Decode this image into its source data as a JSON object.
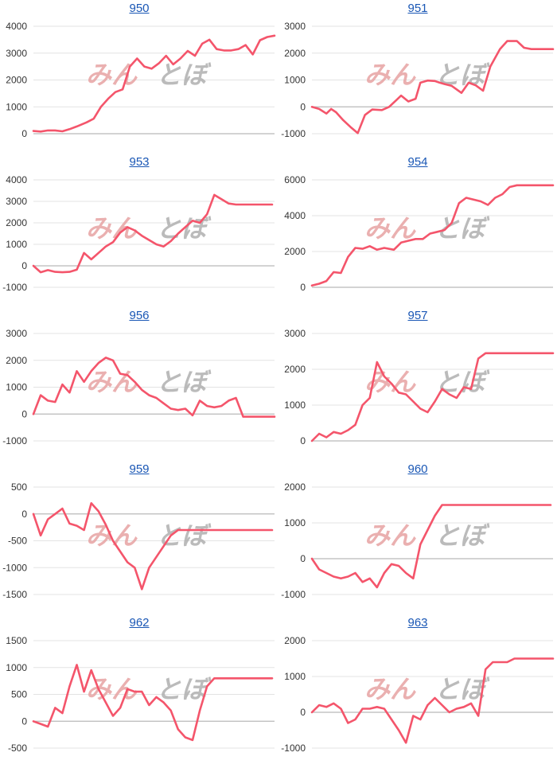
{
  "colors": {
    "line": "#f4556b",
    "grid": "#e3e3e3",
    "axis": "#b9b9b9",
    "watermark_pink": "#e7a3a3",
    "watermark_gray": "#b0b0b0",
    "title_link": "#1a57b5"
  },
  "watermark": {
    "part1": "みん",
    "part2": "とぼ"
  },
  "chart_data": [
    {
      "type": "line",
      "title": "950",
      "yticks": [
        0,
        1000,
        2000,
        3000,
        4000
      ],
      "ylim": [
        0,
        4000
      ],
      "xlim": [
        0,
        100
      ],
      "x": [
        0,
        3,
        6,
        9,
        12,
        15,
        18,
        22,
        25,
        28,
        31,
        34,
        37,
        40,
        43,
        46,
        49,
        52,
        55,
        58,
        61,
        64,
        67,
        70,
        73,
        76,
        79,
        82,
        85,
        88,
        91,
        94,
        97,
        100
      ],
      "y": [
        100,
        80,
        120,
        120,
        90,
        170,
        270,
        420,
        560,
        1000,
        1300,
        1550,
        1650,
        2500,
        2800,
        2500,
        2420,
        2620,
        2900,
        2580,
        2800,
        3080,
        2900,
        3350,
        3500,
        3150,
        3100,
        3100,
        3150,
        3300,
        2950,
        3480,
        3600,
        3650
      ]
    },
    {
      "type": "line",
      "title": "951",
      "yticks": [
        -1000,
        0,
        1000,
        2000,
        3000
      ],
      "ylim": [
        -1000,
        3000
      ],
      "xlim": [
        0,
        100
      ],
      "x": [
        0,
        3,
        6,
        8,
        10,
        13,
        16,
        19,
        22,
        25,
        29,
        32,
        35,
        37,
        40,
        43,
        45,
        48,
        51,
        53,
        55,
        58,
        62,
        65,
        68,
        71,
        74,
        78,
        81,
        85,
        88,
        91,
        94,
        97,
        100
      ],
      "y": [
        0,
        -80,
        -250,
        -80,
        -200,
        -500,
        -750,
        -980,
        -300,
        -100,
        -120,
        0,
        250,
        420,
        200,
        300,
        900,
        980,
        960,
        900,
        850,
        780,
        520,
        900,
        800,
        600,
        1500,
        2150,
        2450,
        2450,
        2200,
        2150,
        2150,
        2150,
        2150
      ]
    },
    {
      "type": "line",
      "title": "953",
      "yticks": [
        -1000,
        0,
        1000,
        2000,
        3000,
        4000
      ],
      "ylim": [
        -1000,
        4000
      ],
      "xlim": [
        0,
        100
      ],
      "x": [
        0,
        3,
        6,
        9,
        12,
        15,
        18,
        21,
        24,
        27,
        30,
        33,
        36,
        39,
        42,
        45,
        48,
        51,
        54,
        57,
        60,
        63,
        66,
        69,
        72,
        75,
        78,
        81,
        84,
        87,
        90,
        93,
        96,
        99
      ],
      "y": [
        0,
        -300,
        -200,
        -280,
        -300,
        -280,
        -180,
        600,
        300,
        600,
        900,
        1100,
        1550,
        1800,
        1650,
        1400,
        1200,
        1000,
        900,
        1150,
        1500,
        1800,
        2100,
        2000,
        2400,
        3300,
        3100,
        2900,
        2850,
        2850,
        2850,
        2850,
        2850,
        2850
      ]
    },
    {
      "type": "line",
      "title": "954",
      "yticks": [
        0,
        2000,
        4000,
        6000
      ],
      "ylim": [
        0,
        6000
      ],
      "xlim": [
        0,
        100
      ],
      "x": [
        0,
        3,
        6,
        9,
        12,
        15,
        18,
        21,
        24,
        27,
        30,
        34,
        37,
        40,
        43,
        46,
        49,
        52,
        55,
        58,
        61,
        64,
        67,
        70,
        73,
        76,
        79,
        82,
        85,
        88,
        91,
        94,
        97,
        100
      ],
      "y": [
        100,
        200,
        350,
        850,
        800,
        1700,
        2200,
        2150,
        2300,
        2100,
        2200,
        2100,
        2500,
        2600,
        2700,
        2700,
        3000,
        3100,
        3200,
        3600,
        4700,
        5000,
        4900,
        4800,
        4600,
        5000,
        5200,
        5600,
        5700,
        5700,
        5700,
        5700,
        5700,
        5700
      ]
    },
    {
      "type": "line",
      "title": "956",
      "yticks": [
        -1000,
        0,
        1000,
        2000,
        3000
      ],
      "ylim": [
        -1000,
        3000
      ],
      "xlim": [
        0,
        100
      ],
      "x": [
        0,
        3,
        6,
        9,
        12,
        15,
        18,
        21,
        24,
        27,
        30,
        33,
        36,
        39,
        42,
        45,
        48,
        51,
        54,
        57,
        60,
        63,
        66,
        69,
        72,
        75,
        78,
        81,
        84,
        87,
        90,
        93,
        96,
        100
      ],
      "y": [
        0,
        700,
        500,
        450,
        1100,
        800,
        1600,
        1200,
        1600,
        1900,
        2100,
        2000,
        1500,
        1450,
        1200,
        900,
        700,
        600,
        400,
        200,
        150,
        200,
        -50,
        500,
        300,
        250,
        300,
        500,
        600,
        -100,
        -100,
        -100,
        -100,
        -100
      ]
    },
    {
      "type": "line",
      "title": "957",
      "yticks": [
        0,
        1000,
        2000,
        3000
      ],
      "ylim": [
        0,
        3000
      ],
      "xlim": [
        0,
        100
      ],
      "x": [
        0,
        3,
        6,
        9,
        12,
        15,
        18,
        21,
        24,
        27,
        30,
        33,
        36,
        39,
        42,
        45,
        48,
        51,
        54,
        57,
        60,
        63,
        66,
        69,
        72,
        75,
        78,
        81,
        84,
        87,
        90,
        93,
        96,
        100
      ],
      "y": [
        0,
        200,
        100,
        250,
        200,
        300,
        450,
        1000,
        1200,
        2200,
        1800,
        1600,
        1350,
        1300,
        1100,
        900,
        800,
        1100,
        1450,
        1300,
        1200,
        1500,
        1450,
        2300,
        2450,
        2450,
        2450,
        2450,
        2450,
        2450,
        2450,
        2450,
        2450,
        2450
      ]
    },
    {
      "type": "line",
      "title": "959",
      "yticks": [
        -1500,
        -1000,
        -500,
        0,
        500
      ],
      "ylim": [
        -1500,
        500
      ],
      "xlim": [
        0,
        100
      ],
      "x": [
        0,
        3,
        6,
        9,
        12,
        15,
        18,
        21,
        24,
        27,
        30,
        33,
        36,
        39,
        42,
        45,
        48,
        51,
        54,
        57,
        60,
        63,
        66,
        69,
        72,
        75,
        78,
        81,
        84,
        87,
        90,
        93,
        96,
        99
      ],
      "y": [
        0,
        -400,
        -100,
        0,
        100,
        -180,
        -220,
        -300,
        200,
        50,
        -200,
        -500,
        -700,
        -900,
        -1000,
        -1400,
        -1000,
        -800,
        -600,
        -400,
        -300,
        -300,
        -300,
        -300,
        -300,
        -300,
        -300,
        -300,
        -300,
        -300,
        -300,
        -300,
        -300,
        -300
      ]
    },
    {
      "type": "line",
      "title": "960",
      "yticks": [
        -1000,
        0,
        1000,
        2000
      ],
      "ylim": [
        -1000,
        2000
      ],
      "xlim": [
        0,
        100
      ],
      "x": [
        0,
        3,
        6,
        9,
        12,
        15,
        18,
        21,
        24,
        27,
        30,
        33,
        36,
        39,
        42,
        45,
        48,
        51,
        54,
        57,
        60,
        63,
        66,
        69,
        72,
        75,
        78,
        81,
        84,
        87,
        90,
        93,
        96,
        99
      ],
      "y": [
        0,
        -300,
        -400,
        -500,
        -550,
        -500,
        -400,
        -650,
        -550,
        -800,
        -400,
        -150,
        -200,
        -400,
        -550,
        400,
        800,
        1200,
        1500,
        1500,
        1500,
        1500,
        1500,
        1500,
        1500,
        1500,
        1500,
        1500,
        1500,
        1500,
        1500,
        1500,
        1500,
        1500
      ]
    },
    {
      "type": "line",
      "title": "962",
      "yticks": [
        -500,
        0,
        500,
        1000,
        1500
      ],
      "ylim": [
        -500,
        1500
      ],
      "xlim": [
        0,
        100
      ],
      "x": [
        0,
        3,
        6,
        9,
        12,
        15,
        18,
        21,
        24,
        27,
        30,
        33,
        36,
        39,
        42,
        45,
        48,
        51,
        54,
        57,
        60,
        63,
        66,
        69,
        72,
        75,
        78,
        81,
        84,
        87,
        90,
        93,
        96,
        99
      ],
      "y": [
        0,
        -50,
        -100,
        250,
        150,
        650,
        1050,
        550,
        950,
        600,
        350,
        100,
        250,
        600,
        550,
        550,
        300,
        450,
        350,
        200,
        -150,
        -300,
        -350,
        200,
        650,
        800,
        800,
        800,
        800,
        800,
        800,
        800,
        800,
        800
      ]
    },
    {
      "type": "line",
      "title": "963",
      "yticks": [
        -1000,
        0,
        1000,
        2000
      ],
      "ylim": [
        -1000,
        2000
      ],
      "xlim": [
        0,
        100
      ],
      "x": [
        0,
        3,
        6,
        9,
        12,
        15,
        18,
        21,
        24,
        27,
        30,
        33,
        36,
        39,
        42,
        45,
        48,
        51,
        54,
        57,
        60,
        63,
        66,
        69,
        72,
        75,
        78,
        81,
        84,
        87,
        90,
        93,
        96,
        100
      ],
      "y": [
        0,
        200,
        150,
        250,
        100,
        -300,
        -200,
        100,
        100,
        150,
        100,
        -200,
        -500,
        -850,
        -100,
        -200,
        200,
        400,
        200,
        0,
        100,
        150,
        250,
        -100,
        1200,
        1400,
        1400,
        1400,
        1500,
        1500,
        1500,
        1500,
        1500,
        1500
      ]
    }
  ]
}
